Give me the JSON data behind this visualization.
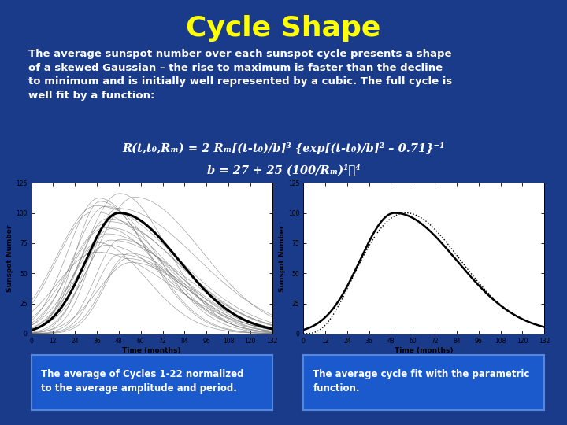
{
  "title": "Cycle Shape",
  "title_color": "#FFFF00",
  "title_fontsize": 26,
  "background_color": "#1a3a8a",
  "body_lines": [
    "The average sunspot number over each sunspot cycle presents a shape",
    "of a skewed Gaussian – the rise to maximum is faster than the decline",
    "to minimum and is initially well represented by a cubic. The full cycle is",
    "well fit by a function:"
  ],
  "formula1": "R(t,t₀,Rₘ) = 2 Rₘ[(t-t₀)/b]³ {exp[(t-t₀)/b]² – 0.71}⁻¹",
  "formula2": "b = 27 + 25 (100/Rₘ)¹ᐟ⁴",
  "caption_left": "The average of Cycles 1-22 normalized\nto the average amplitude and period.",
  "caption_right": "The average cycle fit with the parametric\nfunction.",
  "plot_bg": "#ffffff",
  "caption_bg": "#1a5acc",
  "caption_border": "#5588dd",
  "caption_text_color": "#ffffff",
  "caption_fontsize": 8.5,
  "body_fontsize": 9.5,
  "formula_fontsize": 10.5,
  "t_max": 132,
  "t_min": 0,
  "y_max": 125,
  "y_min": 0,
  "xticks": [
    0,
    12,
    24,
    36,
    48,
    60,
    72,
    84,
    96,
    108,
    120,
    132
  ],
  "yticks": [
    0,
    25,
    50,
    75,
    100,
    125
  ]
}
